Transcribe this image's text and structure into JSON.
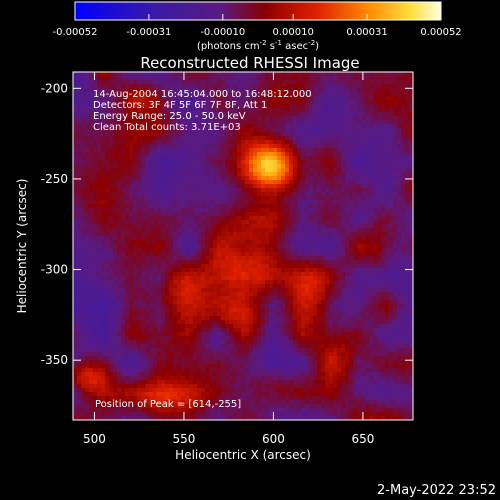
{
  "chart_data": {
    "type": "heatmap",
    "title": "Reconstructed RHESSI Image",
    "xlabel": "Heliocentric X (arcsec)",
    "ylabel": "Heliocentric Y (arcsec)",
    "xlim": [
      488,
      678
    ],
    "ylim": [
      -383,
      -191
    ],
    "x_ticks": [
      500,
      550,
      600,
      650
    ],
    "y_ticks": [
      -200,
      -250,
      -300,
      -350
    ],
    "colorbar": {
      "ticks": [
        "-0.00052",
        "-0.00031",
        "-0.00010",
        "0.00010",
        "0.00031",
        "0.00052"
      ],
      "units_pre": "(photons cm",
      "units_e1": "-2",
      "units_mid1": " s",
      "units_e2": "-1",
      "units_mid2": " asec",
      "units_e3": "-2",
      "units_post": ")",
      "range": [
        -0.00052,
        0.00052
      ]
    },
    "annotations": [
      "14-Aug-2004 16:45:04.000 to 16:48:12.000",
      "Detectors: 3F 4F 5F 6F 7F 8F, Att 1",
      "Energy Range: 25.0 - 50.0 keV",
      "Clean     Total counts: 3.71E+03"
    ],
    "peak_label": "Position of Peak = [614,-255]",
    "peak": [
      614,
      -255
    ],
    "sources": [
      {
        "x": 598,
        "y": -243,
        "peak": 0.00052,
        "rx": 16,
        "ry": 14
      },
      {
        "x": 585,
        "y": -290,
        "peak": 0.00024,
        "rx": 18,
        "ry": 18
      },
      {
        "x": 575,
        "y": -324,
        "peak": 0.00018,
        "rx": 20,
        "ry": 12
      },
      {
        "x": 622,
        "y": -312,
        "peak": 0.00016,
        "rx": 12,
        "ry": 18
      },
      {
        "x": 545,
        "y": -312,
        "peak": 0.00016,
        "rx": 16,
        "ry": 14
      },
      {
        "x": 495,
        "y": -360,
        "peak": 0.00026,
        "rx": 12,
        "ry": 10
      },
      {
        "x": 540,
        "y": -370,
        "peak": 0.00014,
        "rx": 20,
        "ry": 8
      },
      {
        "x": 525,
        "y": -205,
        "peak": 0.00014,
        "rx": 10,
        "ry": 8
      },
      {
        "x": 640,
        "y": -350,
        "peak": 0.00013,
        "rx": 16,
        "ry": 12
      },
      {
        "x": 660,
        "y": -290,
        "peak": 0.00012,
        "rx": 8,
        "ry": 16
      },
      {
        "x": 600,
        "y": -365,
        "peak": 0.00013,
        "rx": 14,
        "ry": 10
      }
    ]
  },
  "footer": {
    "date": "2-May-2022 23:52"
  }
}
